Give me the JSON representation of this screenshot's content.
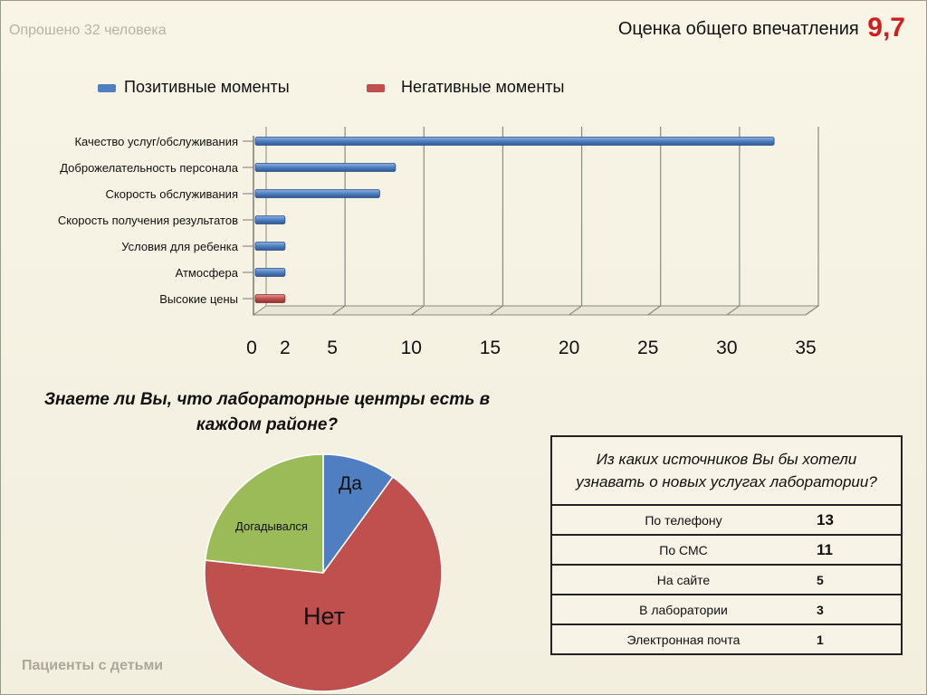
{
  "header": {
    "surveyed": "Опрошено 32 человека",
    "overall_label": "Оценка общего впечатления",
    "overall_score": "9,7"
  },
  "footer": "Пациенты с детьми",
  "colors": {
    "positive": "#4f7fc0",
    "negative": "#c0504d",
    "pie_yes": "#4f7fc0",
    "pie_no": "#c0504d",
    "pie_guessed": "#9bbb59"
  },
  "chart_data": [
    {
      "type": "bar",
      "orientation": "horizontal",
      "legend": [
        "Позитивные моменты",
        "Негативные моменты"
      ],
      "legend_position": "top",
      "categories": [
        "Качество услуг/обслуживания",
        "Доброжелательность персонала",
        "Скорость обслуживания",
        "Скорость получения результатов",
        "Условия для ребенка",
        "Атмосфера",
        "Высокие цены"
      ],
      "series": [
        {
          "name": "Позитивные моменты",
          "values": [
            33,
            9,
            8,
            2,
            2,
            2,
            null
          ]
        },
        {
          "name": "Негативные моменты",
          "values": [
            null,
            null,
            null,
            null,
            null,
            null,
            2
          ]
        }
      ],
      "xticks": [
        "0",
        "2",
        "5",
        "10",
        "15",
        "20",
        "25",
        "30",
        "35"
      ],
      "xtick_values": [
        0,
        2,
        5,
        10,
        15,
        20,
        25,
        30,
        35
      ],
      "xlim": [
        0,
        35
      ],
      "grid": "vertical"
    },
    {
      "type": "pie",
      "title": "Знаете ли Вы, что лабораторные центры есть в каждом районе?",
      "slices": [
        {
          "label": "Да",
          "share": 0.1
        },
        {
          "label": "Нет",
          "share": 0.667
        },
        {
          "label": "Догадывался",
          "share": 0.233
        }
      ]
    },
    {
      "type": "table",
      "title": "Из каких источников Вы бы хотели узнавать о новых услугах лаборатории?",
      "rows": [
        {
          "label": "По телефону",
          "value": "13"
        },
        {
          "label": "По СМС",
          "value": "11"
        },
        {
          "label": "На сайте",
          "value": "5"
        },
        {
          "label": "В лаборатории",
          "value": "3"
        },
        {
          "label": "Электронная почта",
          "value": "1"
        }
      ]
    }
  ]
}
